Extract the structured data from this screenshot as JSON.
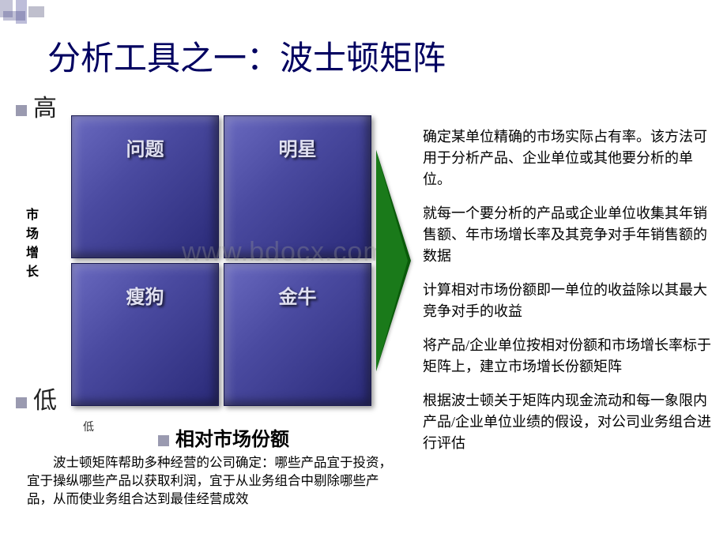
{
  "title": "分析工具之一：波士顿矩阵",
  "axes": {
    "y_high": "高",
    "y_low": "低",
    "y_label": "市场增长",
    "x_low": "低",
    "x_label": "相对市场份额"
  },
  "quadrants": {
    "top_left": "问题",
    "top_right": "明星",
    "bottom_left": "瘦狗",
    "bottom_right": "金牛"
  },
  "watermark": "www.bdocx.com",
  "right_paragraphs": [
    "确定某单位精确的市场实际占有率。该方法可用于分析产品、企业单位或其他要分析的单位。",
    "就每一个要分析的产品或企业单位收集其年销售额、年市场增长率及其竞争对手年销售额的数据",
    "计算相对市场份额即一单位的收益除以其最大竞争对手的收益",
    "将产品/企业单位按相对份额和市场增长率标于矩阵上，建立市场增长份额矩阵",
    "根据波士顿关于矩阵内现金流动和每一象限内产品/企业单位业绩的假设，对公司业务组合进行评估"
  ],
  "bottom_paragraph": "波士顿矩阵帮助多种经营的公司确定：哪些产品宜于投资，宜于操纵哪些产品以获取利润，宜于从业务组合中剔除哪些产品，从而使业务组合达到最佳经营成效",
  "colors": {
    "title_color": "#000060",
    "quad_gradient_start": "#6a6ac0",
    "quad_gradient_end": "#2a2a78",
    "arrow_color": "#0a5a0a",
    "bullet_color": "#9a9ab0"
  }
}
